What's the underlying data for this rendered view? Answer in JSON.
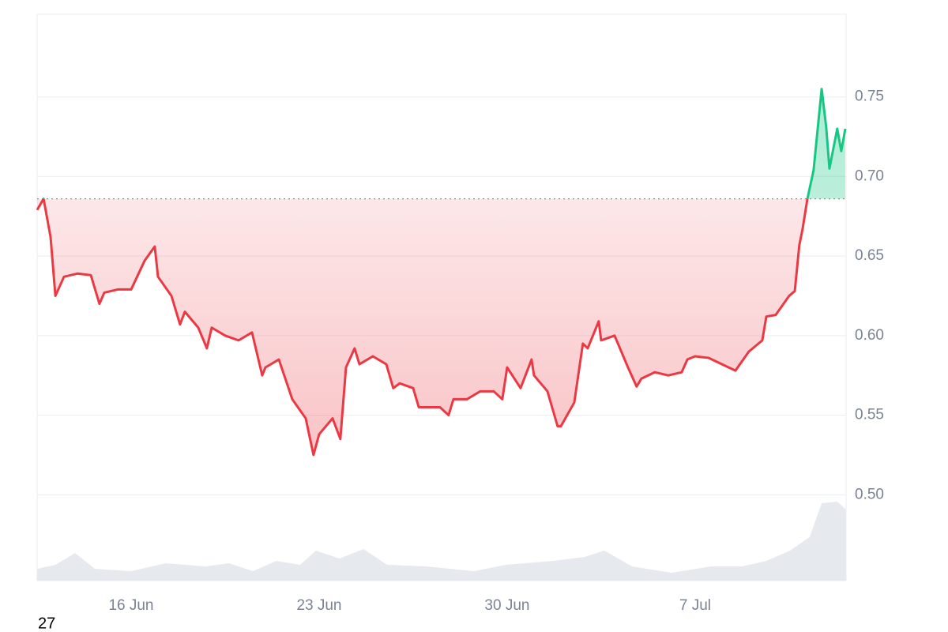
{
  "chart_data": {
    "type": "baseline-area",
    "x": [
      12.5,
      12.74,
      13.0,
      13.18,
      13.5,
      14.0,
      14.5,
      14.82,
      15.0,
      15.5,
      16.0,
      16.5,
      16.88,
      17.0,
      17.5,
      17.82,
      18.0,
      18.5,
      18.82,
      19.0,
      19.5,
      20.0,
      20.5,
      20.88,
      21.0,
      21.5,
      22.0,
      22.5,
      22.79,
      23.0,
      23.5,
      23.79,
      24.0,
      24.32,
      24.5,
      25.0,
      25.5,
      25.76,
      26.0,
      26.5,
      26.71,
      27.0,
      27.5,
      27.82,
      28.0,
      28.5,
      29.0,
      29.5,
      29.82,
      30.0,
      30.5,
      30.91,
      31.0,
      31.5,
      31.88,
      32.0,
      32.5,
      32.82,
      33.0,
      33.41,
      33.5,
      34.0,
      34.5,
      34.82,
      35.0,
      35.5,
      36.0,
      36.5,
      36.71,
      37.0,
      37.5,
      38.0,
      38.5,
      39.0,
      39.5,
      39.65,
      40.0,
      40.5,
      40.71,
      40.88,
      41.0,
      41.18,
      41.41,
      41.71,
      41.88,
      42.0,
      42.29,
      42.44,
      42.59
    ],
    "values": [
      0.679,
      0.686,
      0.662,
      0.625,
      0.637,
      0.639,
      0.638,
      0.62,
      0.627,
      0.629,
      0.629,
      0.647,
      0.656,
      0.637,
      0.625,
      0.607,
      0.615,
      0.605,
      0.592,
      0.605,
      0.6,
      0.597,
      0.602,
      0.575,
      0.58,
      0.585,
      0.56,
      0.548,
      0.525,
      0.538,
      0.548,
      0.535,
      0.58,
      0.592,
      0.582,
      0.587,
      0.582,
      0.567,
      0.57,
      0.567,
      0.555,
      0.555,
      0.555,
      0.55,
      0.56,
      0.56,
      0.565,
      0.565,
      0.56,
      0.58,
      0.567,
      0.585,
      0.575,
      0.565,
      0.543,
      0.543,
      0.558,
      0.595,
      0.592,
      0.609,
      0.597,
      0.6,
      0.58,
      0.568,
      0.573,
      0.577,
      0.575,
      0.577,
      0.585,
      0.587,
      0.586,
      0.582,
      0.578,
      0.59,
      0.597,
      0.612,
      0.613,
      0.625,
      0.628,
      0.657,
      0.667,
      0.686,
      0.704,
      0.755,
      0.731,
      0.705,
      0.73,
      0.716,
      0.73
    ],
    "baseline": 0.686,
    "up_color": "#16c784",
    "down_color": "#ea3943",
    "xlim": [
      12.5,
      42.62
    ],
    "ylim": [
      0.446,
      0.802
    ],
    "xticks": [
      {
        "value": 16,
        "label": "16 Jun"
      },
      {
        "value": 23,
        "label": "23 Jun"
      },
      {
        "value": 30,
        "label": "30 Jun"
      },
      {
        "value": 37,
        "label": "7 Jul"
      }
    ],
    "yticks": [
      {
        "value": 0.5,
        "label": "0.50"
      },
      0.55,
      {
        "value": 0.6,
        "label": "0.60"
      },
      0.65,
      {
        "value": 0.7,
        "label": "0.70"
      },
      0.75
    ],
    "grid": true,
    "volume": {
      "x": [
        12.5,
        13.18,
        13.91,
        14.65,
        16.0,
        17.29,
        18.76,
        19.65,
        20.53,
        21.41,
        22.29,
        22.88,
        23.76,
        24.65,
        25.53,
        27.0,
        28.76,
        29.94,
        31.71,
        32.88,
        33.62,
        34.65,
        36.12,
        37.59,
        38.76,
        39.65,
        40.53,
        41.26,
        41.71,
        42.29,
        42.62
      ],
      "values": [
        15,
        20,
        35,
        15,
        12,
        22,
        18,
        22,
        12,
        25,
        20,
        38,
        28,
        40,
        20,
        18,
        12,
        20,
        25,
        30,
        38,
        18,
        10,
        18,
        18,
        25,
        38,
        55,
        98,
        100,
        90
      ],
      "ylim": [
        0,
        110
      ],
      "color": "#e6e9ee"
    },
    "footer_text": "27"
  }
}
